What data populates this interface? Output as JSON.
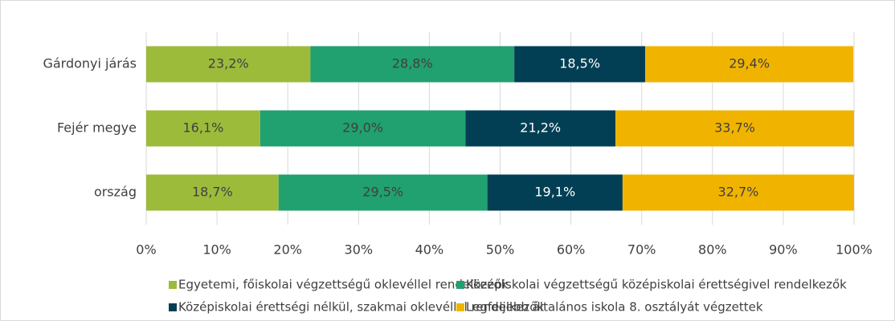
{
  "chart_data": {
    "type": "stacked_bar_horizontal",
    "categories": [
      "Gárdonyi járás",
      "Fejér megye",
      "ország"
    ],
    "series": [
      {
        "name": "Egyetemi, főiskolai végzettségű oklevéllel rendelkezők",
        "color": "#9dbb3b",
        "values": [
          23.2,
          16.1,
          18.7
        ],
        "value_labels": [
          "23,2%",
          "16,1%",
          "18,7%"
        ]
      },
      {
        "name": "Középiskolai végzettségű középiskolai érettségivel rendelkezők",
        "color": "#21a070",
        "values": [
          28.8,
          29.0,
          29.5
        ],
        "value_labels": [
          "28,8%",
          "29,0%",
          "29,5%"
        ]
      },
      {
        "name": "Középiskolai érettségi nélkül, szakmai oklevéllel rendelkezők",
        "color": "#033f54",
        "values": [
          18.5,
          21.2,
          19.1
        ],
        "value_labels": [
          "18,5%",
          "21,2%",
          "19,1%"
        ]
      },
      {
        "name": "Legfeljebb általános iskola 8. osztályát végzettek",
        "color": "#f0b400",
        "values": [
          29.4,
          33.7,
          32.7
        ],
        "value_labels": [
          "29,4%",
          "33,7%",
          "32,7%"
        ]
      }
    ],
    "xlim": [
      0,
      100
    ],
    "xticks": [
      {
        "value": 0,
        "label": "0%"
      },
      {
        "value": 10,
        "label": "10%"
      },
      {
        "value": 20,
        "label": "20%"
      },
      {
        "value": 30,
        "label": "30%"
      },
      {
        "value": 40,
        "label": "40%"
      },
      {
        "value": 50,
        "label": "50%"
      },
      {
        "value": 60,
        "label": "60%"
      },
      {
        "value": 70,
        "label": "70%"
      },
      {
        "value": 80,
        "label": "80%"
      },
      {
        "value": 90,
        "label": "90%"
      },
      {
        "value": 100,
        "label": "100%"
      }
    ],
    "grid": true,
    "legend": "bottom"
  }
}
